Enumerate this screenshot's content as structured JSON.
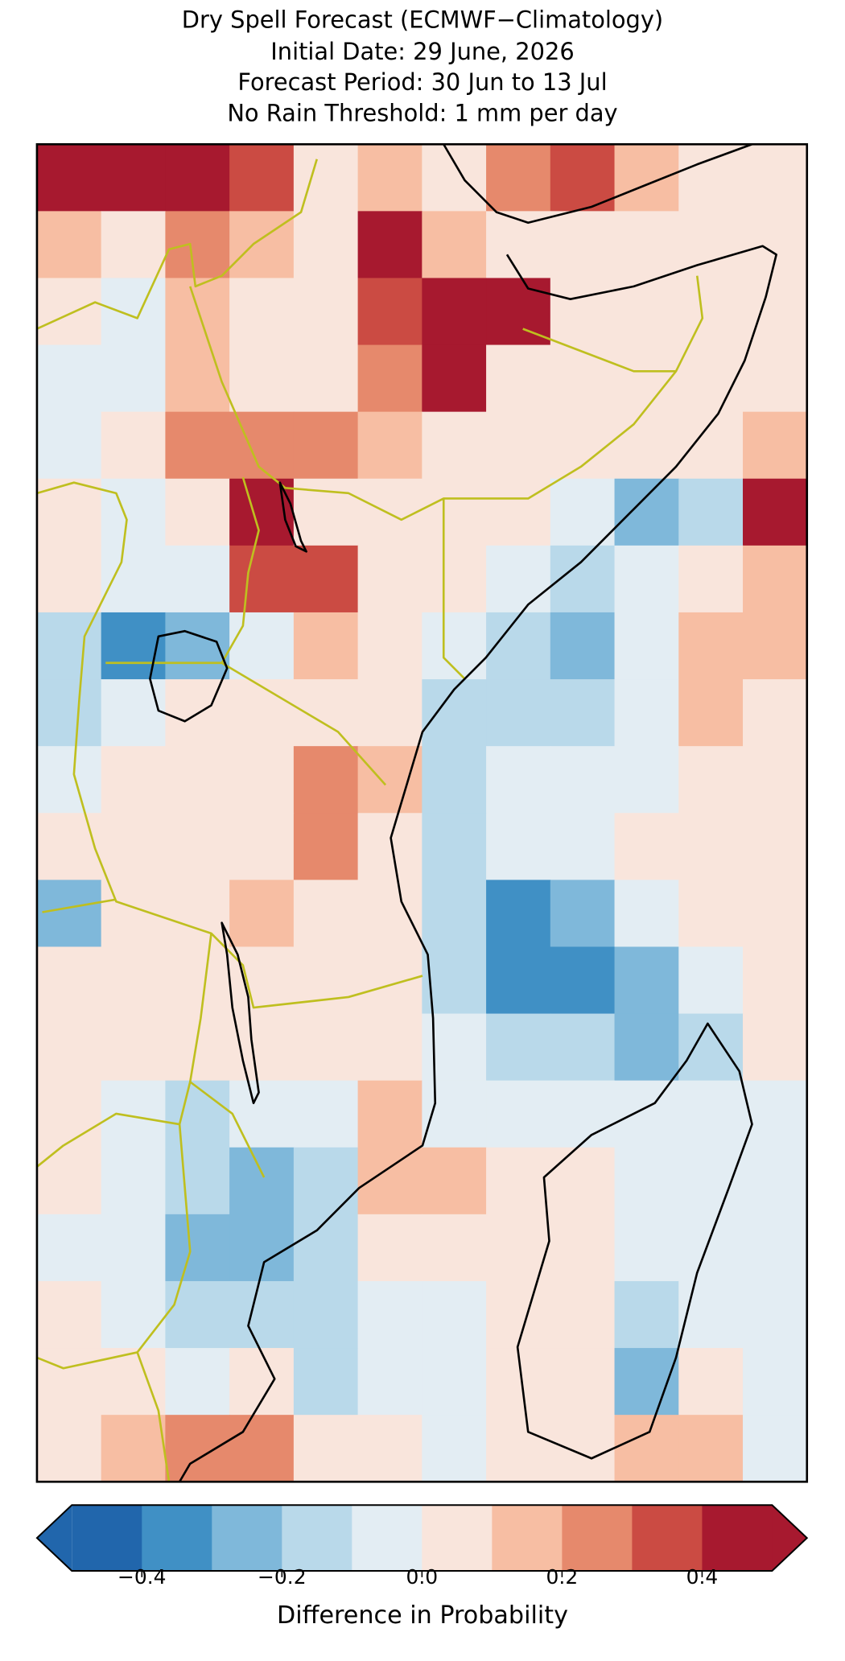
{
  "chart_data": {
    "type": "heatmap",
    "title": "Dry Spell Forecast (ECMWF−Climatology)",
    "subtitles": [
      "Initial Date: 29 June, 2026",
      "Forecast Period: 30 Jun to 13 Jul",
      "No Rain Threshold: 1 mm per day"
    ],
    "values": [
      [
        0.45,
        0.45,
        0.45,
        0.35,
        0.05,
        0.15,
        0.05,
        0.25,
        0.35,
        0.1,
        0.05,
        0.05
      ],
      [
        0.15,
        0.05,
        0.2,
        0.15,
        0.05,
        0.4,
        0.15,
        0.05,
        0.05,
        0.05,
        0.05,
        0.05
      ],
      [
        0.05,
        -0.05,
        0.15,
        0.05,
        0.05,
        0.3,
        0.4,
        0.4,
        0.05,
        0.05,
        0.05,
        0.05
      ],
      [
        -0.05,
        -0.05,
        0.15,
        0.05,
        0.05,
        0.25,
        0.4,
        0.05,
        0.05,
        0.05,
        0.05,
        0.05
      ],
      [
        -0.05,
        0.05,
        0.25,
        0.25,
        0.25,
        0.15,
        0.05,
        0.05,
        0.05,
        0.05,
        0.05,
        0.15
      ],
      [
        0.05,
        -0.05,
        0.05,
        0.4,
        0.05,
        0.05,
        0.05,
        0.05,
        -0.05,
        -0.25,
        -0.15,
        0.4
      ],
      [
        0.05,
        -0.05,
        -0.05,
        0.3,
        0.35,
        0.05,
        0.05,
        -0.05,
        -0.15,
        -0.05,
        0.05,
        0.15
      ],
      [
        -0.15,
        -0.35,
        -0.25,
        -0.05,
        0.15,
        0.05,
        -0.05,
        -0.15,
        -0.25,
        -0.05,
        0.1,
        0.1
      ],
      [
        -0.15,
        -0.05,
        0.05,
        0.05,
        0.05,
        0.05,
        -0.15,
        -0.15,
        -0.15,
        -0.05,
        0.15,
        0.05
      ],
      [
        -0.1,
        0.05,
        0.05,
        0.05,
        0.25,
        0.15,
        -0.15,
        -0.05,
        -0.05,
        -0.05,
        0.05,
        0.05
      ],
      [
        0.05,
        0.05,
        0.05,
        0.05,
        0.25,
        0.05,
        -0.15,
        -0.05,
        -0.05,
        0.05,
        0.05,
        0.05
      ],
      [
        -0.25,
        0.05,
        0.05,
        0.15,
        0.05,
        0.05,
        -0.15,
        -0.35,
        -0.25,
        -0.05,
        0.05,
        0.05
      ],
      [
        0.05,
        0.05,
        0.05,
        0.05,
        0.05,
        0.05,
        -0.15,
        -0.4,
        -0.4,
        -0.3,
        -0.05,
        0.05
      ],
      [
        0.05,
        0.05,
        0.05,
        0.05,
        0.05,
        0.05,
        -0.05,
        -0.15,
        -0.2,
        -0.25,
        -0.15,
        0.05
      ],
      [
        0.05,
        -0.05,
        -0.15,
        -0.05,
        -0.05,
        0.15,
        -0.05,
        -0.05,
        -0.05,
        -0.05,
        -0.05,
        -0.05
      ],
      [
        0.05,
        -0.05,
        -0.15,
        -0.25,
        -0.15,
        0.15,
        0.15,
        0.05,
        0.05,
        -0.05,
        -0.05,
        -0.05
      ],
      [
        -0.05,
        -0.05,
        -0.25,
        -0.3,
        -0.15,
        0.05,
        0.05,
        0.05,
        0.05,
        -0.05,
        -0.05,
        -0.1
      ],
      [
        0.05,
        -0.05,
        -0.15,
        -0.15,
        -0.15,
        -0.05,
        -0.05,
        0.05,
        0.05,
        -0.15,
        -0.05,
        -0.05
      ],
      [
        0.05,
        0.05,
        -0.05,
        0.05,
        -0.15,
        -0.05,
        -0.05,
        0.05,
        0.05,
        -0.25,
        0.05,
        -0.05
      ],
      [
        0.05,
        0.15,
        0.25,
        0.25,
        0.05,
        0.05,
        -0.05,
        0.05,
        0.05,
        0.15,
        0.15,
        -0.05
      ]
    ],
    "colorbar": {
      "label": "Difference in Probability",
      "bounds": [
        -0.5,
        -0.4,
        -0.3,
        -0.2,
        -0.1,
        0,
        0.1,
        0.2,
        0.3,
        0.4,
        0.5
      ],
      "colors": [
        "#2166ac",
        "#4090c5",
        "#7fb8da",
        "#b9d9ea",
        "#e3edf3",
        "#f9e5dc",
        "#f7bea3",
        "#e6896c",
        "#cb4b43",
        "#a7192f"
      ],
      "ticks": [
        {
          "value": -0.4,
          "label": "−0.4"
        },
        {
          "value": -0.2,
          "label": "−0.2"
        },
        {
          "value": 0,
          "label": "0.0"
        },
        0.2,
        0.4
      ],
      "extend": "both"
    }
  }
}
